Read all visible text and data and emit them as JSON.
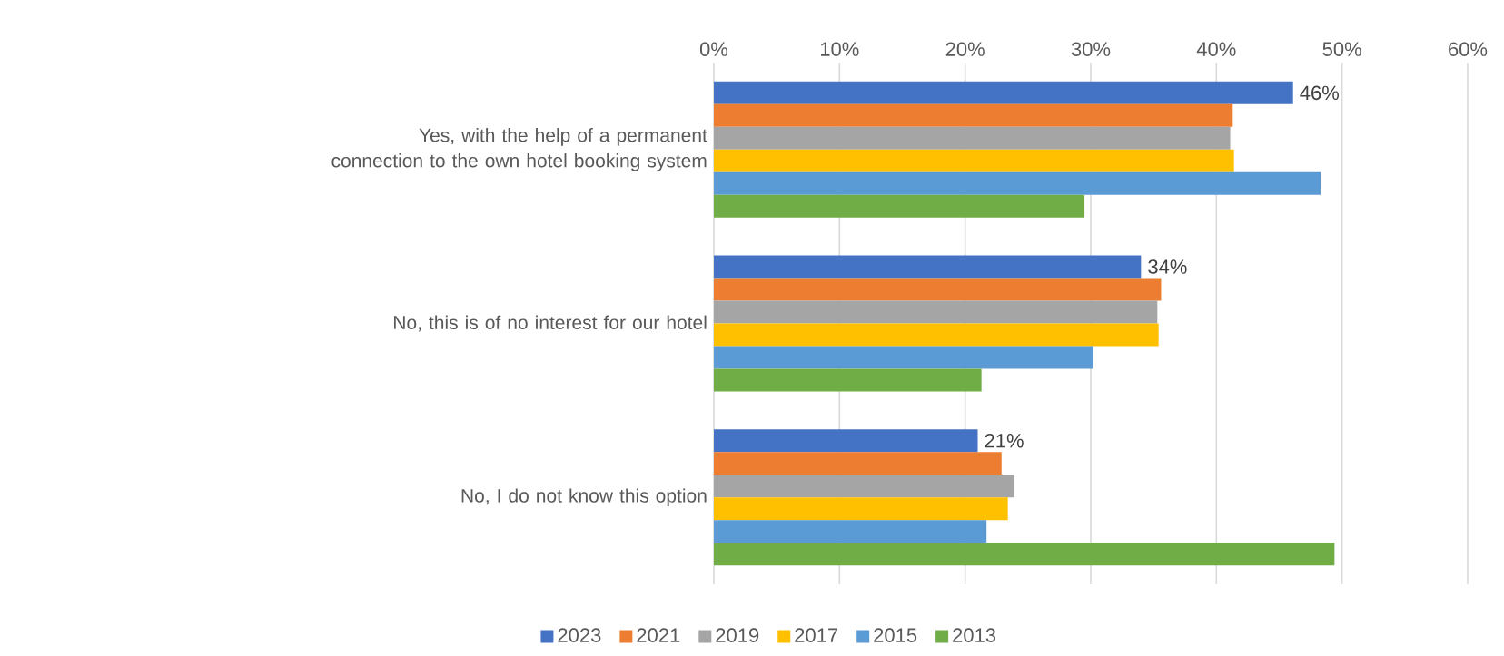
{
  "chart_data": {
    "type": "bar",
    "orientation": "horizontal",
    "categories": [
      "Yes, with the help of a permanent connection to the own hotel booking system",
      "No, this is of no interest for our hotel",
      "No, I do not know this option"
    ],
    "series": [
      {
        "name": "2023",
        "color": "#4472c4",
        "values": [
          46.1,
          34.0,
          21.0
        ],
        "value_labels": [
          "46%",
          "34%",
          "21%"
        ]
      },
      {
        "name": "2021",
        "color": "#ed7d31",
        "values": [
          41.3,
          35.6,
          22.9
        ]
      },
      {
        "name": "2019",
        "color": "#a5a5a5",
        "values": [
          41.1,
          35.3,
          23.9
        ]
      },
      {
        "name": "2017",
        "color": "#ffc000",
        "values": [
          41.4,
          35.4,
          23.4
        ]
      },
      {
        "name": "2015",
        "color": "#5b9bd5",
        "values": [
          48.3,
          30.2,
          21.7
        ]
      },
      {
        "name": "2013",
        "color": "#70ad47",
        "values": [
          29.5,
          21.3,
          49.4
        ]
      }
    ],
    "xlim": [
      0,
      60
    ],
    "xticks": [
      {
        "value": 0,
        "label": "0%"
      },
      {
        "value": 10,
        "label": "10%"
      },
      {
        "value": 20,
        "label": "20%"
      },
      {
        "value": 30,
        "label": "30%"
      },
      {
        "value": 40,
        "label": "40%"
      },
      {
        "value": 50,
        "label": "50%"
      },
      {
        "value": 60,
        "label": "60%"
      }
    ],
    "grid": "x",
    "legend": "bottom"
  }
}
